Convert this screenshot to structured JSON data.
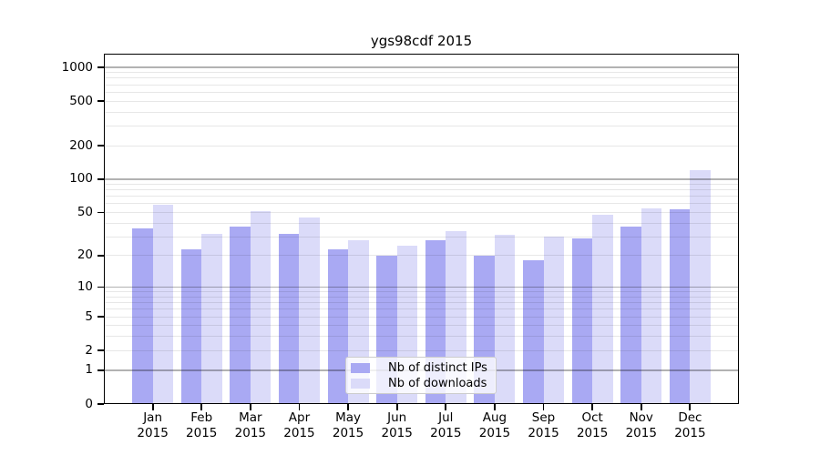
{
  "title": "ygs98cdf 2015",
  "chart_data": {
    "type": "bar",
    "title": "ygs98cdf 2015",
    "categories": [
      "Jan",
      "Feb",
      "Mar",
      "Apr",
      "May",
      "Jun",
      "Jul",
      "Aug",
      "Sep",
      "Oct",
      "Nov",
      "Dec"
    ],
    "year_label": "2015",
    "series": [
      {
        "name": "Nb of distinct IPs",
        "color": "#a9a9f3",
        "values": [
          36,
          23,
          37,
          32,
          23,
          20,
          28,
          20,
          18,
          29,
          37,
          53
        ]
      },
      {
        "name": "Nb of downloads",
        "color": "#dbdbf9",
        "values": [
          59,
          32,
          51,
          45,
          28,
          25,
          34,
          31,
          30,
          48,
          54,
          120
        ]
      }
    ],
    "yscale": "log10(value+1)",
    "ylim": [
      0,
      1000
    ],
    "ytick_values": [
      1000,
      500,
      200,
      100,
      50,
      20,
      10,
      5,
      2,
      1,
      0
    ],
    "ytick_labels": [
      "1000",
      "500",
      "200",
      "100",
      "50",
      "20",
      "10",
      "5",
      "2",
      "1",
      "0"
    ],
    "major_grid_values": [
      1,
      10,
      100,
      1000
    ],
    "minor_grid_values": [
      2,
      3,
      4,
      5,
      6,
      7,
      8,
      9,
      20,
      30,
      40,
      50,
      60,
      70,
      80,
      90,
      200,
      300,
      400,
      500,
      600,
      700,
      800,
      900
    ],
    "grid": true,
    "legend_position": "lower center"
  },
  "legend": {
    "entries": [
      "Nb of distinct IPs",
      "Nb of downloads"
    ]
  },
  "colors": {
    "bar_distinct_ips": "#a9a9f3",
    "bar_downloads": "#dbdbf9",
    "grid_major": "#b3b3b3",
    "grid_minor": "#e9e9e9",
    "spine": "#000000",
    "background": "#ffffff",
    "legend_border": "#cccccc"
  }
}
